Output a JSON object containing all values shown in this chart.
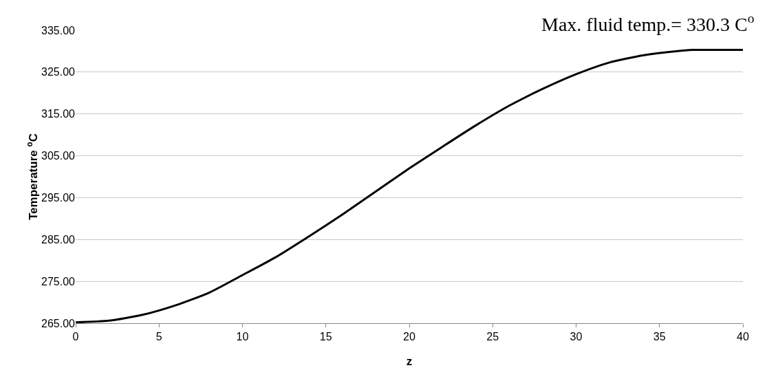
{
  "chart_data": {
    "type": "line",
    "xlabel": "z",
    "ylabel": "Temperature $^{o}$C",
    "annotations": [
      "Max. fluid temp.= 330.3 C$^{o}$"
    ],
    "x": [
      0,
      2,
      4,
      6,
      8,
      10,
      12,
      14,
      16,
      18,
      20,
      22,
      24,
      26,
      28,
      30,
      32,
      34,
      36,
      37,
      38,
      40
    ],
    "series": [
      {
        "color": "#000000",
        "values": [
          265.2,
          265.6,
          267,
          269.3,
          272.3,
          276.5,
          280.8,
          285.8,
          291,
          296.5,
          302,
          307.2,
          312.3,
          317,
          321,
          324.5,
          327.3,
          329,
          330,
          330.3,
          330.3,
          330.3
        ]
      }
    ],
    "xlim": [
      0,
      40
    ],
    "xticks": [
      0,
      5,
      10,
      15,
      20,
      25,
      30,
      35,
      40
    ],
    "ylim": [
      265,
      335
    ],
    "yticks": [
      {
        "value": 265,
        "label": "265.00"
      },
      {
        "value": 275,
        "label": "275.00"
      },
      {
        "value": 285,
        "label": "285.00"
      },
      {
        "value": 295,
        "label": "295.00"
      },
      {
        "value": 305,
        "label": "305.00"
      },
      {
        "value": 315,
        "label": "315.00"
      },
      {
        "value": 325,
        "label": "325.00"
      },
      {
        "value": 335,
        "label": "335.00"
      }
    ],
    "grid": "y",
    "marker": "none",
    "line_style": "solid"
  }
}
